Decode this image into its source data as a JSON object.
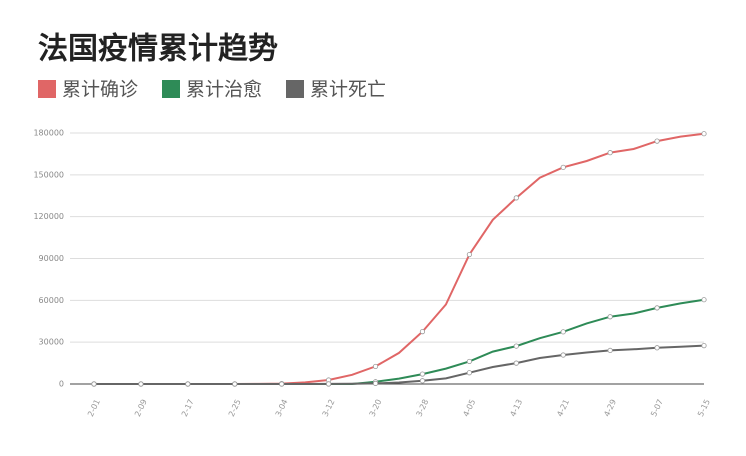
{
  "chart_data": {
    "type": "line",
    "title": "法国疫情累计趋势",
    "categories": [
      "2-01",
      null,
      "2-09",
      null,
      "2-17",
      null,
      "2-25",
      null,
      "3-04",
      null,
      "3-12",
      null,
      "3-20",
      null,
      "3-28",
      null,
      "4-05",
      null,
      "4-13",
      null,
      "4-21",
      null,
      "4-29",
      null,
      "5-07",
      null,
      "5-15"
    ],
    "series": [
      {
        "name": "累计确诊",
        "color": "#e06666",
        "values": [
          6,
          6,
          11,
          11,
          12,
          12,
          14,
          100,
          285,
          1126,
          2876,
          6633,
          12612,
          22304,
          37575,
          56989,
          92839,
          117749,
          133470,
          147969,
          155383,
          159952,
          165911,
          168518,
          174191,
          177423,
          179506
        ]
      },
      {
        "name": "累计治愈",
        "color": "#2e8b57",
        "values": [
          0,
          0,
          0,
          2,
          4,
          12,
          12,
          12,
          12,
          12,
          12,
          12,
          1587,
          3900,
          7132,
          11053,
          16183,
          23206,
          27186,
          32812,
          37409,
          43493,
          48228,
          50562,
          54597,
          57785,
          60448
        ]
      },
      {
        "name": "累计死亡",
        "color": "#666666",
        "values": [
          0,
          0,
          0,
          1,
          1,
          1,
          1,
          2,
          4,
          19,
          61,
          148,
          450,
          1100,
          2314,
          4032,
          8078,
          12210,
          14967,
          18681,
          20796,
          22614,
          24087,
          24900,
          25987,
          26643,
          27529
        ]
      }
    ],
    "ylim": [
      0,
      180000
    ],
    "yticks": [
      0,
      30000,
      60000,
      90000,
      120000,
      150000,
      180000
    ],
    "grid": true
  }
}
